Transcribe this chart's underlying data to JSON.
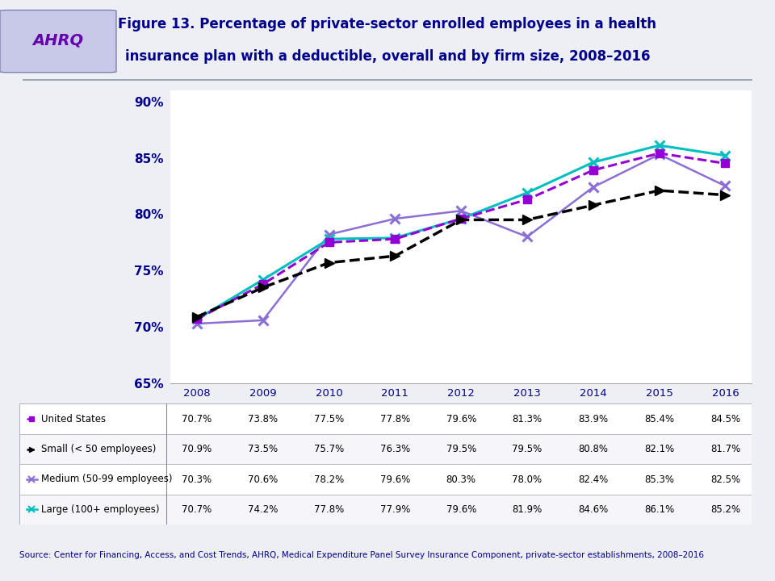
{
  "title_line1": "Figure 13. Percentage of private-sector enrolled employees in a health",
  "title_line2": "insurance plan with a deductible, overall and by firm size, 2008–2016",
  "source_text": "Source: Center for Financing, Access, and Cost Trends, AHRQ, Medical Expenditure Panel Survey Insurance Component, private-sector establishments, 2008–2016",
  "years": [
    2008,
    2009,
    2010,
    2011,
    2012,
    2013,
    2014,
    2015,
    2016
  ],
  "us_values": [
    70.7,
    73.8,
    77.5,
    77.8,
    79.6,
    81.3,
    83.9,
    85.4,
    84.5
  ],
  "small_values": [
    70.9,
    73.5,
    75.7,
    76.3,
    79.5,
    79.5,
    80.8,
    82.1,
    81.7
  ],
  "medium_values": [
    70.3,
    70.6,
    78.2,
    79.6,
    80.3,
    78.0,
    82.4,
    85.3,
    82.5
  ],
  "large_values": [
    70.7,
    74.2,
    77.8,
    77.9,
    79.6,
    81.9,
    84.6,
    86.1,
    85.2
  ],
  "us_color": "#9400D3",
  "small_color": "#000000",
  "medium_color": "#8B6FD4",
  "large_color": "#00BFBF",
  "table_rows": [
    [
      "70.7%",
      "73.8%",
      "77.5%",
      "77.8%",
      "79.6%",
      "81.3%",
      "83.9%",
      "85.4%",
      "84.5%"
    ],
    [
      "70.9%",
      "73.5%",
      "75.7%",
      "76.3%",
      "79.5%",
      "79.5%",
      "80.8%",
      "82.1%",
      "81.7%"
    ],
    [
      "70.3%",
      "70.6%",
      "78.2%",
      "79.6%",
      "80.3%",
      "78.0%",
      "82.4%",
      "85.3%",
      "82.5%"
    ],
    [
      "70.7%",
      "74.2%",
      "77.8%",
      "77.9%",
      "79.6%",
      "81.9%",
      "84.6%",
      "86.1%",
      "85.2%"
    ]
  ],
  "row_labels": [
    "United States",
    "Small (< 50 employees)",
    "Medium (50-99 employees)",
    "Large (100+ employees)"
  ],
  "bg_color": "#EEEEF5",
  "plot_bg": "#FFFFFF",
  "title_color": "#00008B",
  "axis_color": "#00008B",
  "source_color": "#00008B",
  "grid_color": "#CCCCCC",
  "ylim": [
    65,
    91
  ],
  "yticks": [
    65,
    70,
    75,
    80,
    85,
    90
  ],
  "ytick_labels": [
    "65%",
    "70%",
    "75%",
    "80%",
    "85%",
    "90%"
  ]
}
